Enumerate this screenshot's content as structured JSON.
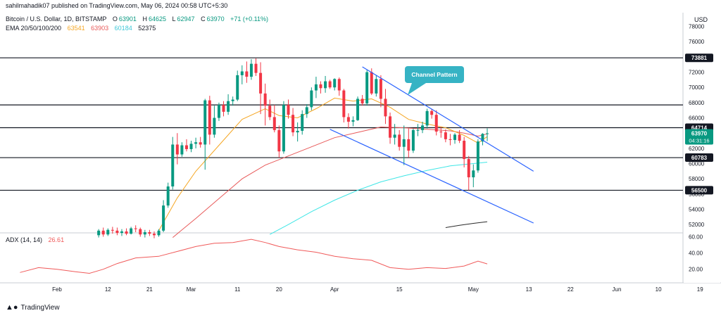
{
  "header": {
    "published": "sahilmahadik07 published on TradingView.com, May 06, 2024 00:58 UTC+5:30",
    "currency": "USD"
  },
  "legend": {
    "symbol": "Bitcoin / U.S. Dollar, 1D, BITSTAMP",
    "ohlc": [
      {
        "label": "O",
        "value": "63901"
      },
      {
        "label": "H",
        "value": "64625"
      },
      {
        "label": "L",
        "value": "62947"
      },
      {
        "label": "C",
        "value": "63970"
      }
    ],
    "change": "+71 (+0.11%)",
    "ema_label": "EMA 20/50/100/200",
    "ema_values": [
      "63541",
      "63903",
      "60184",
      "52375"
    ],
    "adx_label": "ADX (14, 14)",
    "adx_value": "26.61"
  },
  "annotation": {
    "text": "Channel Pattern"
  },
  "price_tag": {
    "price": "63970",
    "countdown": "04:31:16"
  },
  "footer": {
    "brand": "TradingView"
  },
  "colors": {
    "up": "#089981",
    "down": "#f23645",
    "ema20": "#f5a623",
    "ema50": "#e85a5a",
    "ema100": "#3ee6e6",
    "ema200": "#2a2a2a",
    "adx": "#f05a5a",
    "channel": "#2962ff",
    "annotation": "#36b3c4"
  },
  "chart_data": {
    "type": "candlestick",
    "symbol": "Bitcoin / U.S. Dollar, 1D, BITSTAMP",
    "y_ticks": [
      "78000",
      "76000",
      "74000",
      "72000",
      "70000",
      "68000",
      "66000",
      "64000",
      "62000",
      "60000",
      "58000",
      "56000",
      "54000",
      "52000"
    ],
    "ylim": [
      51000,
      78700
    ],
    "x_ticks": [
      {
        "label": "Feb",
        "day": 0
      },
      {
        "label": "12",
        "day": 11
      },
      {
        "label": "21",
        "day": 20
      },
      {
        "label": "Mar",
        "day": 29
      },
      {
        "label": "11",
        "day": 39
      },
      {
        "label": "20",
        "day": 48
      },
      {
        "label": "Apr",
        "day": 60
      },
      {
        "label": "15",
        "day": 74
      },
      {
        "label": "May",
        "day": 90
      },
      {
        "label": "13",
        "day": 102
      },
      {
        "label": "22",
        "day": 111
      },
      {
        "label": "Jun",
        "day": 121
      },
      {
        "label": "10",
        "day": 130
      },
      {
        "label": "19",
        "day": 139
      }
    ],
    "horizontal_levels": [
      "73881",
      "67700",
      "64714",
      "60783",
      "56500"
    ],
    "candles": [
      {
        "day": 9,
        "o": 50600,
        "h": 51400,
        "l": 50300,
        "c": 51200
      },
      {
        "day": 10,
        "o": 51200,
        "h": 51600,
        "l": 50400,
        "c": 50700
      },
      {
        "day": 11,
        "o": 50700,
        "h": 51500,
        "l": 50500,
        "c": 51300
      },
      {
        "day": 12,
        "o": 51300,
        "h": 51700,
        "l": 50800,
        "c": 51200
      },
      {
        "day": 13,
        "o": 51200,
        "h": 51600,
        "l": 50600,
        "c": 50900
      },
      {
        "day": 14,
        "o": 50900,
        "h": 51400,
        "l": 50500,
        "c": 51100
      },
      {
        "day": 15,
        "o": 51100,
        "h": 51500,
        "l": 50600,
        "c": 50800
      },
      {
        "day": 16,
        "o": 50800,
        "h": 51700,
        "l": 50700,
        "c": 51500
      },
      {
        "day": 17,
        "o": 51500,
        "h": 51900,
        "l": 51000,
        "c": 51400
      },
      {
        "day": 18,
        "o": 51400,
        "h": 51600,
        "l": 50400,
        "c": 50700
      },
      {
        "day": 19,
        "o": 50700,
        "h": 51300,
        "l": 50300,
        "c": 51000
      },
      {
        "day": 20,
        "o": 51000,
        "h": 51300,
        "l": 50500,
        "c": 50800
      },
      {
        "day": 21,
        "o": 50800,
        "h": 51100,
        "l": 50200,
        "c": 50600
      },
      {
        "day": 22,
        "o": 50600,
        "h": 51400,
        "l": 50400,
        "c": 51200
      },
      {
        "day": 23,
        "o": 51200,
        "h": 55200,
        "l": 51000,
        "c": 54500
      },
      {
        "day": 24,
        "o": 54500,
        "h": 57500,
        "l": 54200,
        "c": 57000
      },
      {
        "day": 25,
        "o": 57000,
        "h": 63500,
        "l": 56600,
        "c": 62500
      },
      {
        "day": 26,
        "o": 62500,
        "h": 64000,
        "l": 59900,
        "c": 61200
      },
      {
        "day": 27,
        "o": 61200,
        "h": 62800,
        "l": 60900,
        "c": 62400
      },
      {
        "day": 28,
        "o": 62400,
        "h": 63200,
        "l": 61600,
        "c": 61900
      },
      {
        "day": 29,
        "o": 61900,
        "h": 63000,
        "l": 61500,
        "c": 62600
      },
      {
        "day": 30,
        "o": 62600,
        "h": 63400,
        "l": 62000,
        "c": 62800
      },
      {
        "day": 31,
        "o": 62800,
        "h": 63500,
        "l": 62100,
        "c": 62500
      },
      {
        "day": 32,
        "o": 62500,
        "h": 68500,
        "l": 59200,
        "c": 68300
      },
      {
        "day": 33,
        "o": 68300,
        "h": 68900,
        "l": 62500,
        "c": 63800
      },
      {
        "day": 34,
        "o": 63800,
        "h": 67600,
        "l": 63400,
        "c": 66000
      },
      {
        "day": 35,
        "o": 66000,
        "h": 68000,
        "l": 65600,
        "c": 67700
      },
      {
        "day": 36,
        "o": 67700,
        "h": 68200,
        "l": 66200,
        "c": 66800
      },
      {
        "day": 37,
        "o": 66800,
        "h": 69100,
        "l": 66400,
        "c": 68200
      },
      {
        "day": 38,
        "o": 68200,
        "h": 68800,
        "l": 67600,
        "c": 68400
      },
      {
        "day": 39,
        "o": 68400,
        "h": 72200,
        "l": 68200,
        "c": 71600
      },
      {
        "day": 40,
        "o": 71600,
        "h": 72900,
        "l": 70400,
        "c": 72100
      },
      {
        "day": 41,
        "o": 72100,
        "h": 73400,
        "l": 70600,
        "c": 71400
      },
      {
        "day": 42,
        "o": 71400,
        "h": 73700,
        "l": 71000,
        "c": 73100
      },
      {
        "day": 43,
        "o": 73100,
        "h": 73800,
        "l": 71500,
        "c": 71900
      },
      {
        "day": 44,
        "o": 71900,
        "h": 73300,
        "l": 66500,
        "c": 69200
      },
      {
        "day": 45,
        "o": 69200,
        "h": 70500,
        "l": 65000,
        "c": 67600
      },
      {
        "day": 46,
        "o": 67600,
        "h": 68400,
        "l": 65700,
        "c": 66100
      },
      {
        "day": 47,
        "o": 66100,
        "h": 67700,
        "l": 64100,
        "c": 64400
      },
      {
        "day": 48,
        "o": 64400,
        "h": 65000,
        "l": 60800,
        "c": 61600
      },
      {
        "day": 49,
        "o": 61600,
        "h": 68200,
        "l": 61300,
        "c": 67700
      },
      {
        "day": 50,
        "o": 67700,
        "h": 68400,
        "l": 65900,
        "c": 66400
      },
      {
        "day": 51,
        "o": 66400,
        "h": 67300,
        "l": 63600,
        "c": 64100
      },
      {
        "day": 52,
        "o": 64100,
        "h": 65400,
        "l": 62900,
        "c": 64300
      },
      {
        "day": 53,
        "o": 64300,
        "h": 67000,
        "l": 63800,
        "c": 66500
      },
      {
        "day": 54,
        "o": 66500,
        "h": 67800,
        "l": 66000,
        "c": 67400
      },
      {
        "day": 55,
        "o": 67400,
        "h": 70000,
        "l": 67000,
        "c": 69600
      },
      {
        "day": 56,
        "o": 69600,
        "h": 71400,
        "l": 68600,
        "c": 70400
      },
      {
        "day": 57,
        "o": 70400,
        "h": 70800,
        "l": 69200,
        "c": 69900
      },
      {
        "day": 58,
        "o": 69900,
        "h": 71500,
        "l": 69300,
        "c": 70800
      },
      {
        "day": 59,
        "o": 70800,
        "h": 71000,
        "l": 69800,
        "c": 70000
      },
      {
        "day": 60,
        "o": 70000,
        "h": 71200,
        "l": 69600,
        "c": 71100
      },
      {
        "day": 61,
        "o": 71100,
        "h": 71300,
        "l": 68900,
        "c": 69600
      },
      {
        "day": 62,
        "o": 69600,
        "h": 69800,
        "l": 65400,
        "c": 66100
      },
      {
        "day": 63,
        "o": 66100,
        "h": 66600,
        "l": 64600,
        "c": 65500
      },
      {
        "day": 64,
        "o": 65500,
        "h": 66200,
        "l": 64900,
        "c": 65700
      },
      {
        "day": 65,
        "o": 65700,
        "h": 68800,
        "l": 65600,
        "c": 68500
      },
      {
        "day": 66,
        "o": 68500,
        "h": 69000,
        "l": 67600,
        "c": 67900
      },
      {
        "day": 67,
        "o": 67900,
        "h": 72300,
        "l": 67600,
        "c": 72000
      },
      {
        "day": 68,
        "o": 72000,
        "h": 72500,
        "l": 69000,
        "c": 69200
      },
      {
        "day": 69,
        "o": 69200,
        "h": 71600,
        "l": 68800,
        "c": 71100
      },
      {
        "day": 70,
        "o": 71100,
        "h": 71600,
        "l": 67400,
        "c": 68500
      },
      {
        "day": 71,
        "o": 68500,
        "h": 69800,
        "l": 65200,
        "c": 66200
      },
      {
        "day": 72,
        "o": 66200,
        "h": 66700,
        "l": 62600,
        "c": 63400
      },
      {
        "day": 73,
        "o": 63400,
        "h": 65200,
        "l": 62500,
        "c": 63800
      },
      {
        "day": 74,
        "o": 63800,
        "h": 64400,
        "l": 61700,
        "c": 62200
      },
      {
        "day": 75,
        "o": 62200,
        "h": 65000,
        "l": 59800,
        "c": 63200
      },
      {
        "day": 76,
        "o": 63200,
        "h": 64600,
        "l": 60800,
        "c": 61700
      },
      {
        "day": 77,
        "o": 61700,
        "h": 64600,
        "l": 61400,
        "c": 64400
      },
      {
        "day": 78,
        "o": 64400,
        "h": 65200,
        "l": 63600,
        "c": 64400
      },
      {
        "day": 79,
        "o": 64400,
        "h": 65500,
        "l": 64000,
        "c": 65000
      },
      {
        "day": 80,
        "o": 65000,
        "h": 67200,
        "l": 64600,
        "c": 66900
      },
      {
        "day": 81,
        "o": 66900,
        "h": 67200,
        "l": 65900,
        "c": 66400
      },
      {
        "day": 82,
        "o": 66400,
        "h": 67000,
        "l": 63700,
        "c": 64200
      },
      {
        "day": 83,
        "o": 64200,
        "h": 64800,
        "l": 63400,
        "c": 64100
      },
      {
        "day": 84,
        "o": 64100,
        "h": 64500,
        "l": 62800,
        "c": 63200
      },
      {
        "day": 85,
        "o": 63200,
        "h": 63900,
        "l": 62400,
        "c": 63100
      },
      {
        "day": 86,
        "o": 63100,
        "h": 64000,
        "l": 62600,
        "c": 63800
      },
      {
        "day": 87,
        "o": 63800,
        "h": 64400,
        "l": 62700,
        "c": 63000
      },
      {
        "day": 88,
        "o": 63000,
        "h": 63500,
        "l": 59500,
        "c": 60600
      },
      {
        "day": 89,
        "o": 60600,
        "h": 61000,
        "l": 56500,
        "c": 58200
      },
      {
        "day": 90,
        "o": 58200,
        "h": 59900,
        "l": 56900,
        "c": 59100
      },
      {
        "day": 91,
        "o": 59100,
        "h": 63200,
        "l": 58800,
        "c": 62900
      },
      {
        "day": 92,
        "o": 62900,
        "h": 64000,
        "l": 62400,
        "c": 63900
      },
      {
        "day": 93,
        "o": 63901,
        "h": 64625,
        "l": 62947,
        "c": 63970
      }
    ],
    "ema20": [
      {
        "day": 22,
        "v": 51200
      },
      {
        "day": 26,
        "v": 55500
      },
      {
        "day": 30,
        "v": 59000
      },
      {
        "day": 35,
        "v": 62400
      },
      {
        "day": 40,
        "v": 65800
      },
      {
        "day": 45,
        "v": 67200
      },
      {
        "day": 48,
        "v": 66300
      },
      {
        "day": 52,
        "v": 66000
      },
      {
        "day": 56,
        "v": 67200
      },
      {
        "day": 60,
        "v": 68600
      },
      {
        "day": 64,
        "v": 68200
      },
      {
        "day": 68,
        "v": 68500
      },
      {
        "day": 72,
        "v": 67400
      },
      {
        "day": 76,
        "v": 65800
      },
      {
        "day": 80,
        "v": 65200
      },
      {
        "day": 84,
        "v": 64700
      },
      {
        "day": 88,
        "v": 63700
      },
      {
        "day": 91,
        "v": 62700
      },
      {
        "day": 93,
        "v": 63541
      }
    ],
    "ema50": [
      {
        "day": 25,
        "v": 50300
      },
      {
        "day": 30,
        "v": 52800
      },
      {
        "day": 35,
        "v": 55400
      },
      {
        "day": 40,
        "v": 58000
      },
      {
        "day": 45,
        "v": 59800
      },
      {
        "day": 50,
        "v": 61000
      },
      {
        "day": 55,
        "v": 62200
      },
      {
        "day": 60,
        "v": 63400
      },
      {
        "day": 65,
        "v": 64100
      },
      {
        "day": 70,
        "v": 64800
      },
      {
        "day": 75,
        "v": 64700
      },
      {
        "day": 80,
        "v": 64500
      },
      {
        "day": 85,
        "v": 64300
      },
      {
        "day": 88,
        "v": 64000
      },
      {
        "day": 91,
        "v": 63600
      },
      {
        "day": 93,
        "v": 63903
      }
    ],
    "ema100": [
      {
        "day": 46,
        "v": 50700
      },
      {
        "day": 50,
        "v": 52000
      },
      {
        "day": 55,
        "v": 53700
      },
      {
        "day": 60,
        "v": 55200
      },
      {
        "day": 65,
        "v": 56500
      },
      {
        "day": 70,
        "v": 57600
      },
      {
        "day": 75,
        "v": 58400
      },
      {
        "day": 80,
        "v": 59100
      },
      {
        "day": 85,
        "v": 59700
      },
      {
        "day": 90,
        "v": 60000
      },
      {
        "day": 93,
        "v": 60184
      }
    ],
    "ema200": [
      {
        "day": 84,
        "v": 51600
      },
      {
        "day": 87,
        "v": 51900
      },
      {
        "day": 90,
        "v": 52150
      },
      {
        "day": 93,
        "v": 52375
      }
    ],
    "channel": [
      {
        "name": "upper",
        "from": {
          "day": 66,
          "v": 72700
        },
        "to": {
          "day": 103,
          "v": 59000
        }
      },
      {
        "name": "lower",
        "from": {
          "day": 59,
          "v": 64500
        },
        "to": {
          "day": 103,
          "v": 52200
        }
      }
    ],
    "adx": {
      "label": "ADX (14, 14)",
      "y_ticks": [
        "60.00",
        "40.00",
        "20.00"
      ],
      "ylim": [
        5,
        64
      ],
      "points": [
        {
          "day": -8,
          "v": 16
        },
        {
          "day": -4,
          "v": 22
        },
        {
          "day": 0,
          "v": 20
        },
        {
          "day": 4,
          "v": 17
        },
        {
          "day": 7,
          "v": 15
        },
        {
          "day": 10,
          "v": 20
        },
        {
          "day": 13,
          "v": 27
        },
        {
          "day": 17,
          "v": 34
        },
        {
          "day": 22,
          "v": 36
        },
        {
          "day": 26,
          "v": 42
        },
        {
          "day": 30,
          "v": 48
        },
        {
          "day": 34,
          "v": 52
        },
        {
          "day": 38,
          "v": 53
        },
        {
          "day": 42,
          "v": 57
        },
        {
          "day": 45,
          "v": 53
        },
        {
          "day": 48,
          "v": 48
        },
        {
          "day": 52,
          "v": 44
        },
        {
          "day": 56,
          "v": 41
        },
        {
          "day": 60,
          "v": 36
        },
        {
          "day": 64,
          "v": 33
        },
        {
          "day": 68,
          "v": 31
        },
        {
          "day": 72,
          "v": 22
        },
        {
          "day": 76,
          "v": 20
        },
        {
          "day": 80,
          "v": 22
        },
        {
          "day": 84,
          "v": 21
        },
        {
          "day": 88,
          "v": 24
        },
        {
          "day": 91,
          "v": 30
        },
        {
          "day": 93,
          "v": 26.61
        }
      ]
    }
  }
}
